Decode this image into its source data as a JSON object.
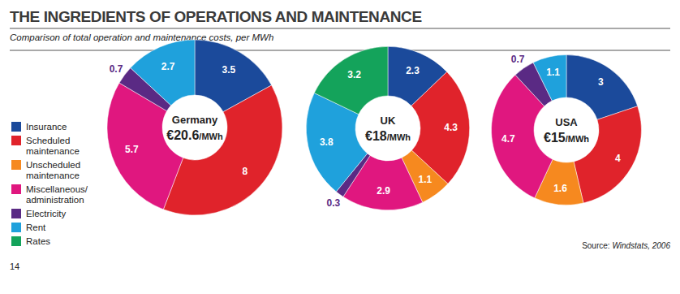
{
  "chart_data": {
    "type": "pie",
    "title": "THE INGREDIENTS OF OPERATIONS AND MAINTENANCE",
    "subtitle": "Comparison of total operation and maintenance costs, per MWh",
    "source": "Source: Windstats, 2006",
    "page_number": 14,
    "legend": "left",
    "data_labels": true,
    "categories": [
      "Insurance",
      "Scheduled maintenance",
      "Unscheduled maintenance",
      "Miscellaneous/administration",
      "Electricity",
      "Rent",
      "Rates"
    ],
    "colors": [
      "#1b4a9b",
      "#e0232b",
      "#f6891f",
      "#e0177f",
      "#5a2a84",
      "#1fa1dc",
      "#14a35b"
    ],
    "series": [
      {
        "name": "Germany",
        "total_label": "€20.6/MWh",
        "values": [
          3.5,
          8,
          null,
          5.7,
          0.7,
          2.7,
          null
        ]
      },
      {
        "name": "UK",
        "total_label": "€18/MWh",
        "values": [
          2.3,
          4.3,
          1.1,
          2.9,
          0.3,
          3.8,
          3.2
        ]
      },
      {
        "name": "USA",
        "total_label": "€15/MWh",
        "values": [
          3,
          4,
          1.6,
          4.7,
          0.7,
          1.1,
          null
        ]
      }
    ]
  }
}
